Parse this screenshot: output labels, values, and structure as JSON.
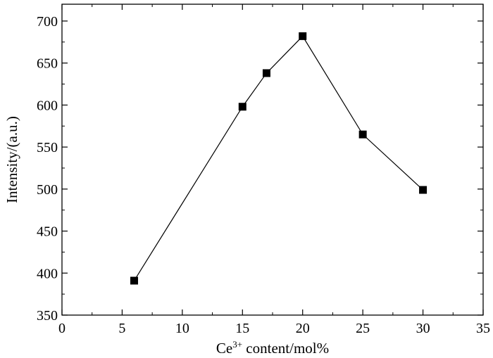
{
  "chart_data": {
    "type": "line",
    "title": "",
    "xlabel": {
      "base": "Ce",
      "sup": "3+",
      "rest": " content/mol%"
    },
    "ylabel": "Intensity/(a.u.)",
    "xlim": [
      0,
      35
    ],
    "ylim": [
      350,
      720
    ],
    "x_ticks": [
      0,
      5,
      10,
      15,
      20,
      25,
      30,
      35
    ],
    "y_ticks": [
      350,
      400,
      450,
      500,
      550,
      600,
      650,
      700
    ],
    "x_tick_labels": [
      "0",
      "5",
      "10",
      "15",
      "20",
      "25",
      "30",
      "35"
    ],
    "y_tick_labels": [
      "350",
      "400",
      "450",
      "500",
      "550",
      "600",
      "650",
      "700"
    ],
    "grid": false,
    "marker": "square",
    "series": [
      {
        "x": [
          6,
          15,
          17,
          20,
          25,
          30
        ],
        "y": [
          391,
          598,
          638,
          682,
          565,
          499
        ],
        "color": "#000000"
      }
    ]
  }
}
